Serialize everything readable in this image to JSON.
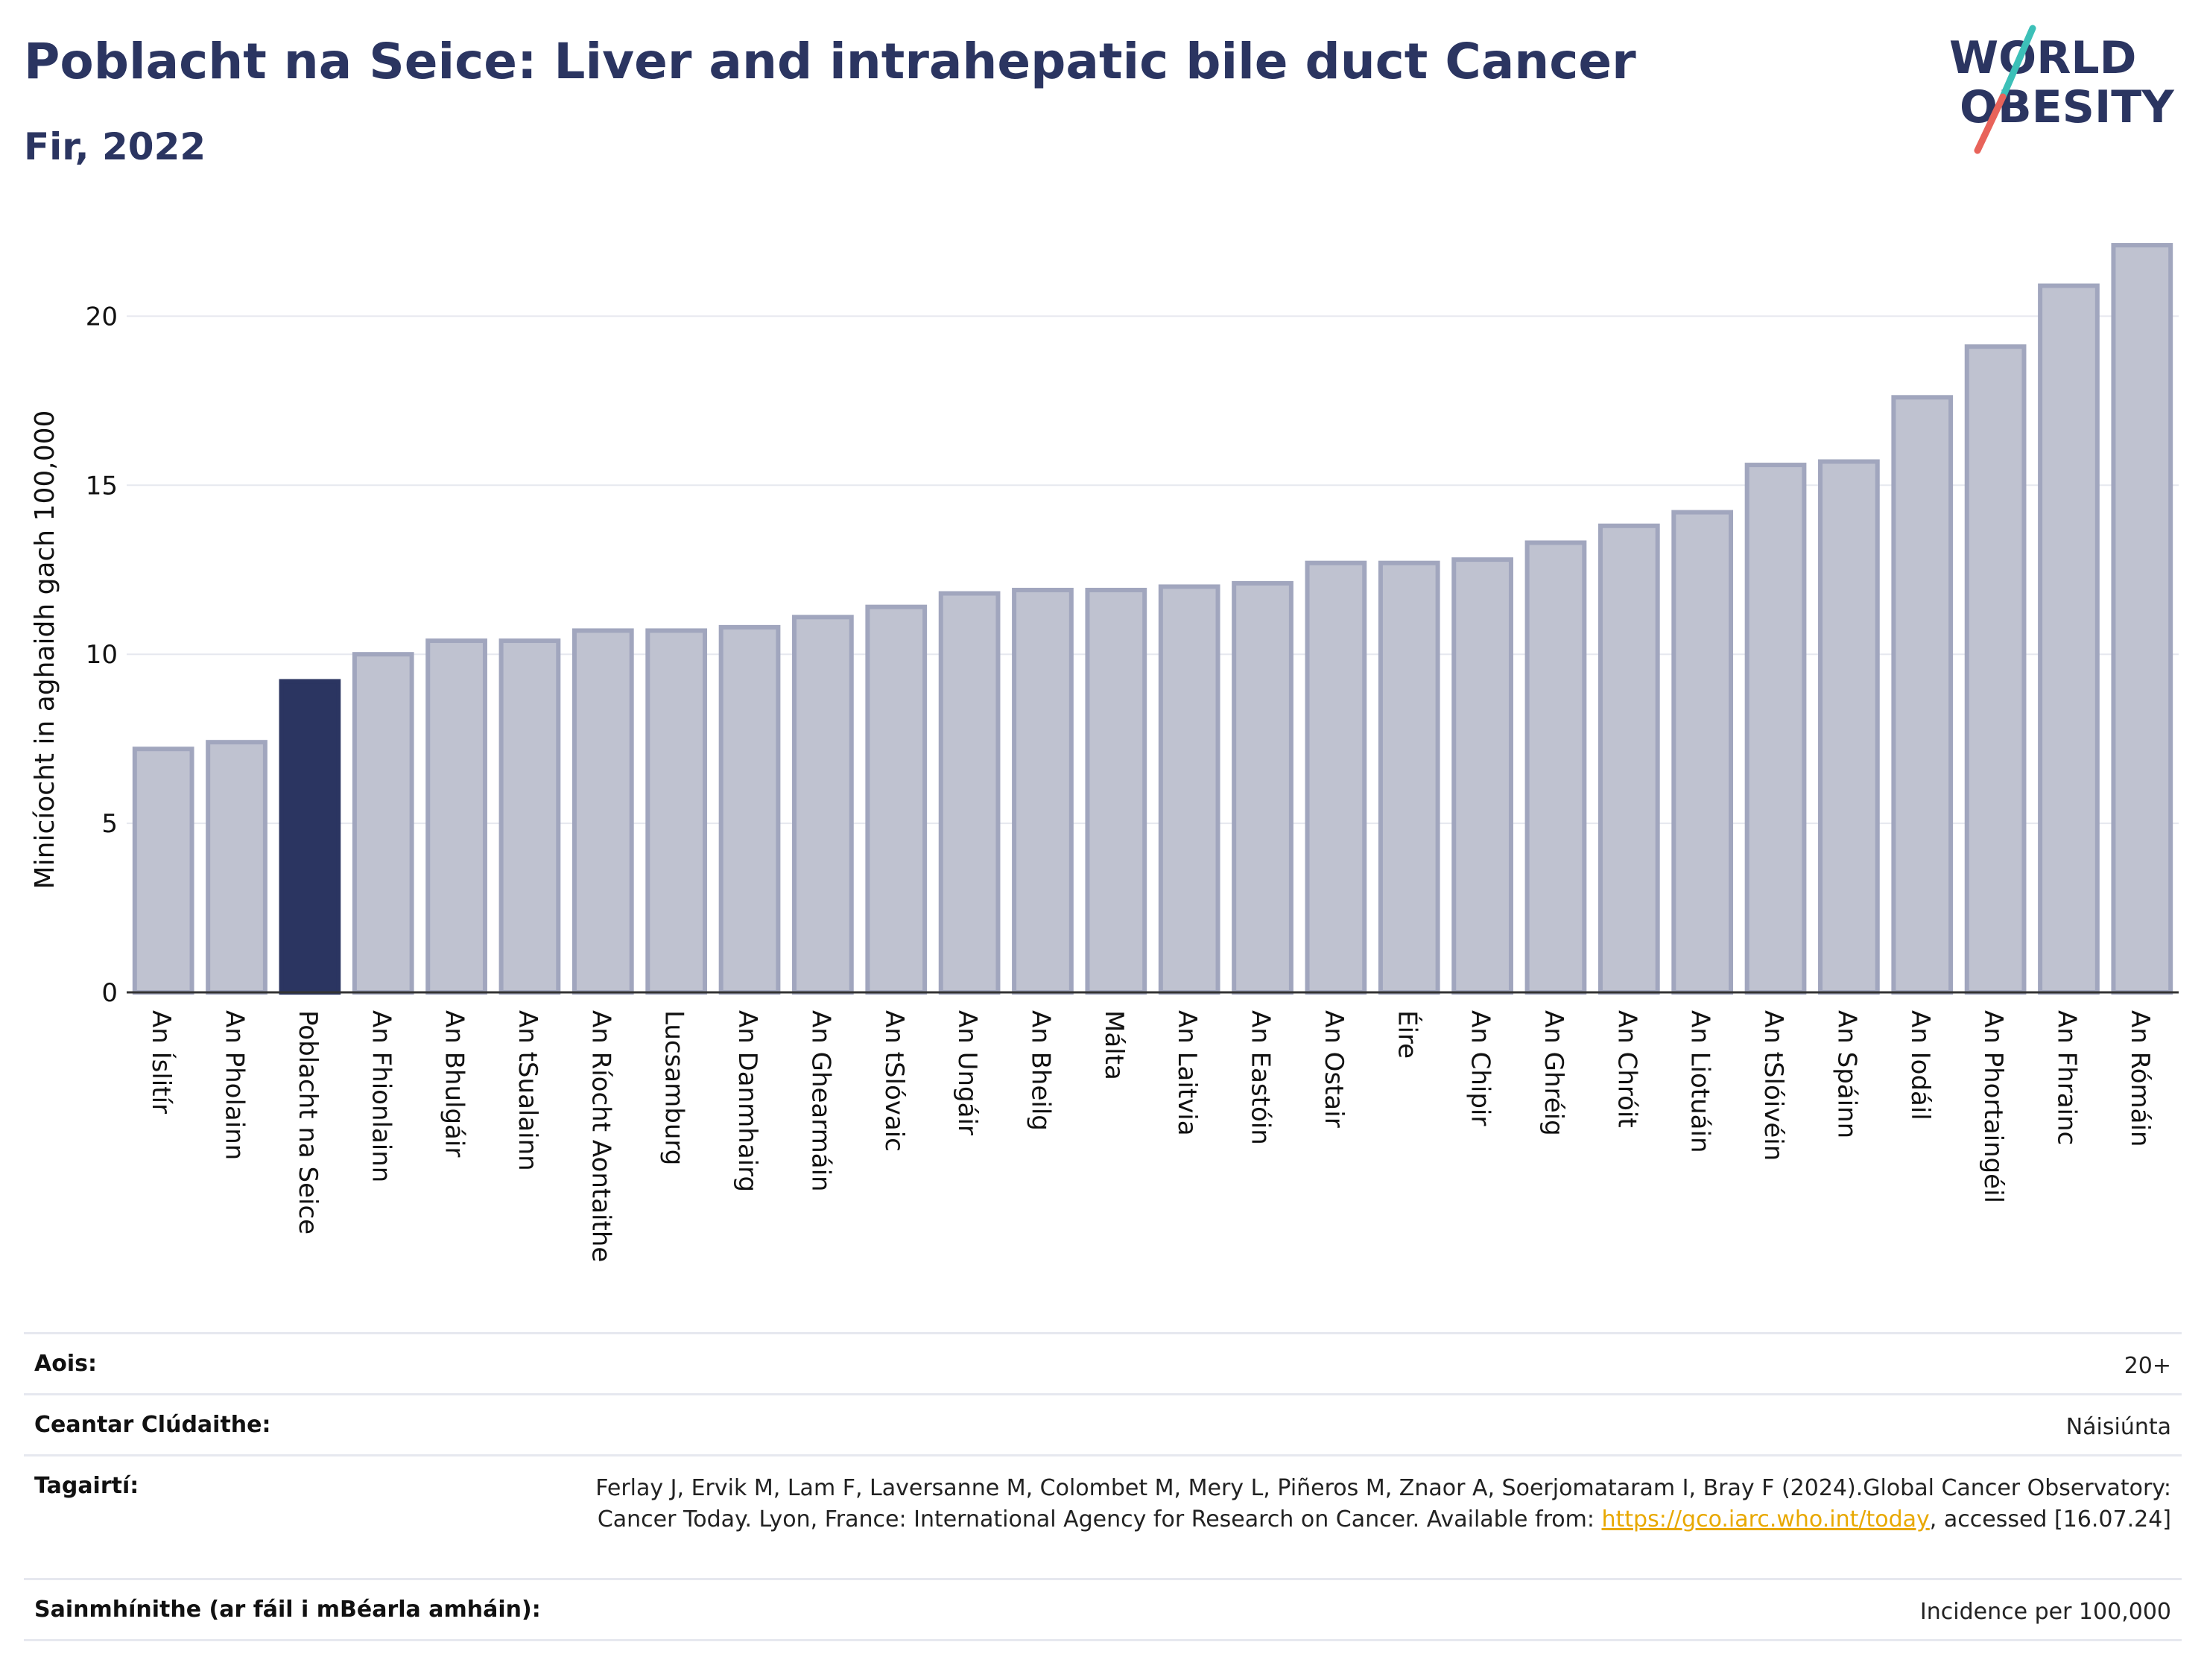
{
  "title": "Poblacht na Seice: Liver and intrahepatic bile duct Cancer",
  "subtitle": "Fir, 2022",
  "logo": {
    "line1": "WORLD",
    "line2": "OBESITY",
    "slash_colors": [
      "#3cc0b8",
      "#e8635a"
    ]
  },
  "colors": {
    "highlight": "#2b3561",
    "bar_fill": "#bfc2d0",
    "bar_stroke": "#a1a6be",
    "axis": "#333333",
    "grid": "#e6e8ef"
  },
  "chart_data": {
    "type": "bar",
    "title": "Poblacht na Seice: Liver and intrahepatic bile duct Cancer",
    "subtitle": "Fir, 2022",
    "ylabel": "Minicíocht in aghaidh gach 100,000",
    "xlabel": "",
    "ylim": [
      0,
      22.3
    ],
    "yticks": [
      0,
      5,
      10,
      15,
      20
    ],
    "highlight": "Poblacht na Seice",
    "categories": [
      "An Íslitír",
      "An Pholainn",
      "Poblacht na Seice",
      "An Fhionlainn",
      "An Bhulgáir",
      "An tSualainn",
      "An Ríocht Aontaithe",
      "Lucsamburg",
      "An Danmhairg",
      "An Ghearmáin",
      "An tSlóvaic",
      "An Ungáir",
      "An Bheilg",
      "Málta",
      "An Laitvia",
      "An Eastóin",
      "An Ostair",
      "Éire",
      "An Chipir",
      "An Ghréig",
      "An Chróit",
      "An Liotuáin",
      "An tSlóivéin",
      "An Spáinn",
      "An Iodáil",
      "An Phortaingéil",
      "An Fhrainc",
      "An Rómáin"
    ],
    "values": [
      7.2,
      7.4,
      9.2,
      10.0,
      10.4,
      10.4,
      10.7,
      10.7,
      10.8,
      11.1,
      11.4,
      11.8,
      11.9,
      11.9,
      12.0,
      12.1,
      12.7,
      12.7,
      12.8,
      13.3,
      13.8,
      14.2,
      15.6,
      15.7,
      17.6,
      19.1,
      20.9,
      22.1
    ],
    "grid": true,
    "legend": "none"
  },
  "info": [
    {
      "label": "Aois:",
      "value": "20+"
    },
    {
      "label": "Ceantar Clúdaithe:",
      "value": "Náisiúnta"
    },
    {
      "label": "Tagairtí:",
      "value_pre": "Ferlay J, Ervik M, Lam F, Laversanne M, Colombet M, Mery L, Piñeros M, Znaor A, Soerjomataram I, Bray F (2024).Global Cancer Observatory: Cancer Today. Lyon, France: International Agency for Research on Cancer. Available from: ",
      "link": "https://gco.iarc.who.int/today",
      "value_post": ", accessed [16.07.24]"
    },
    {
      "label": "Sainmhínithe (ar fáil i mBéarla amháin):",
      "value": "Incidence per 100,000"
    }
  ]
}
